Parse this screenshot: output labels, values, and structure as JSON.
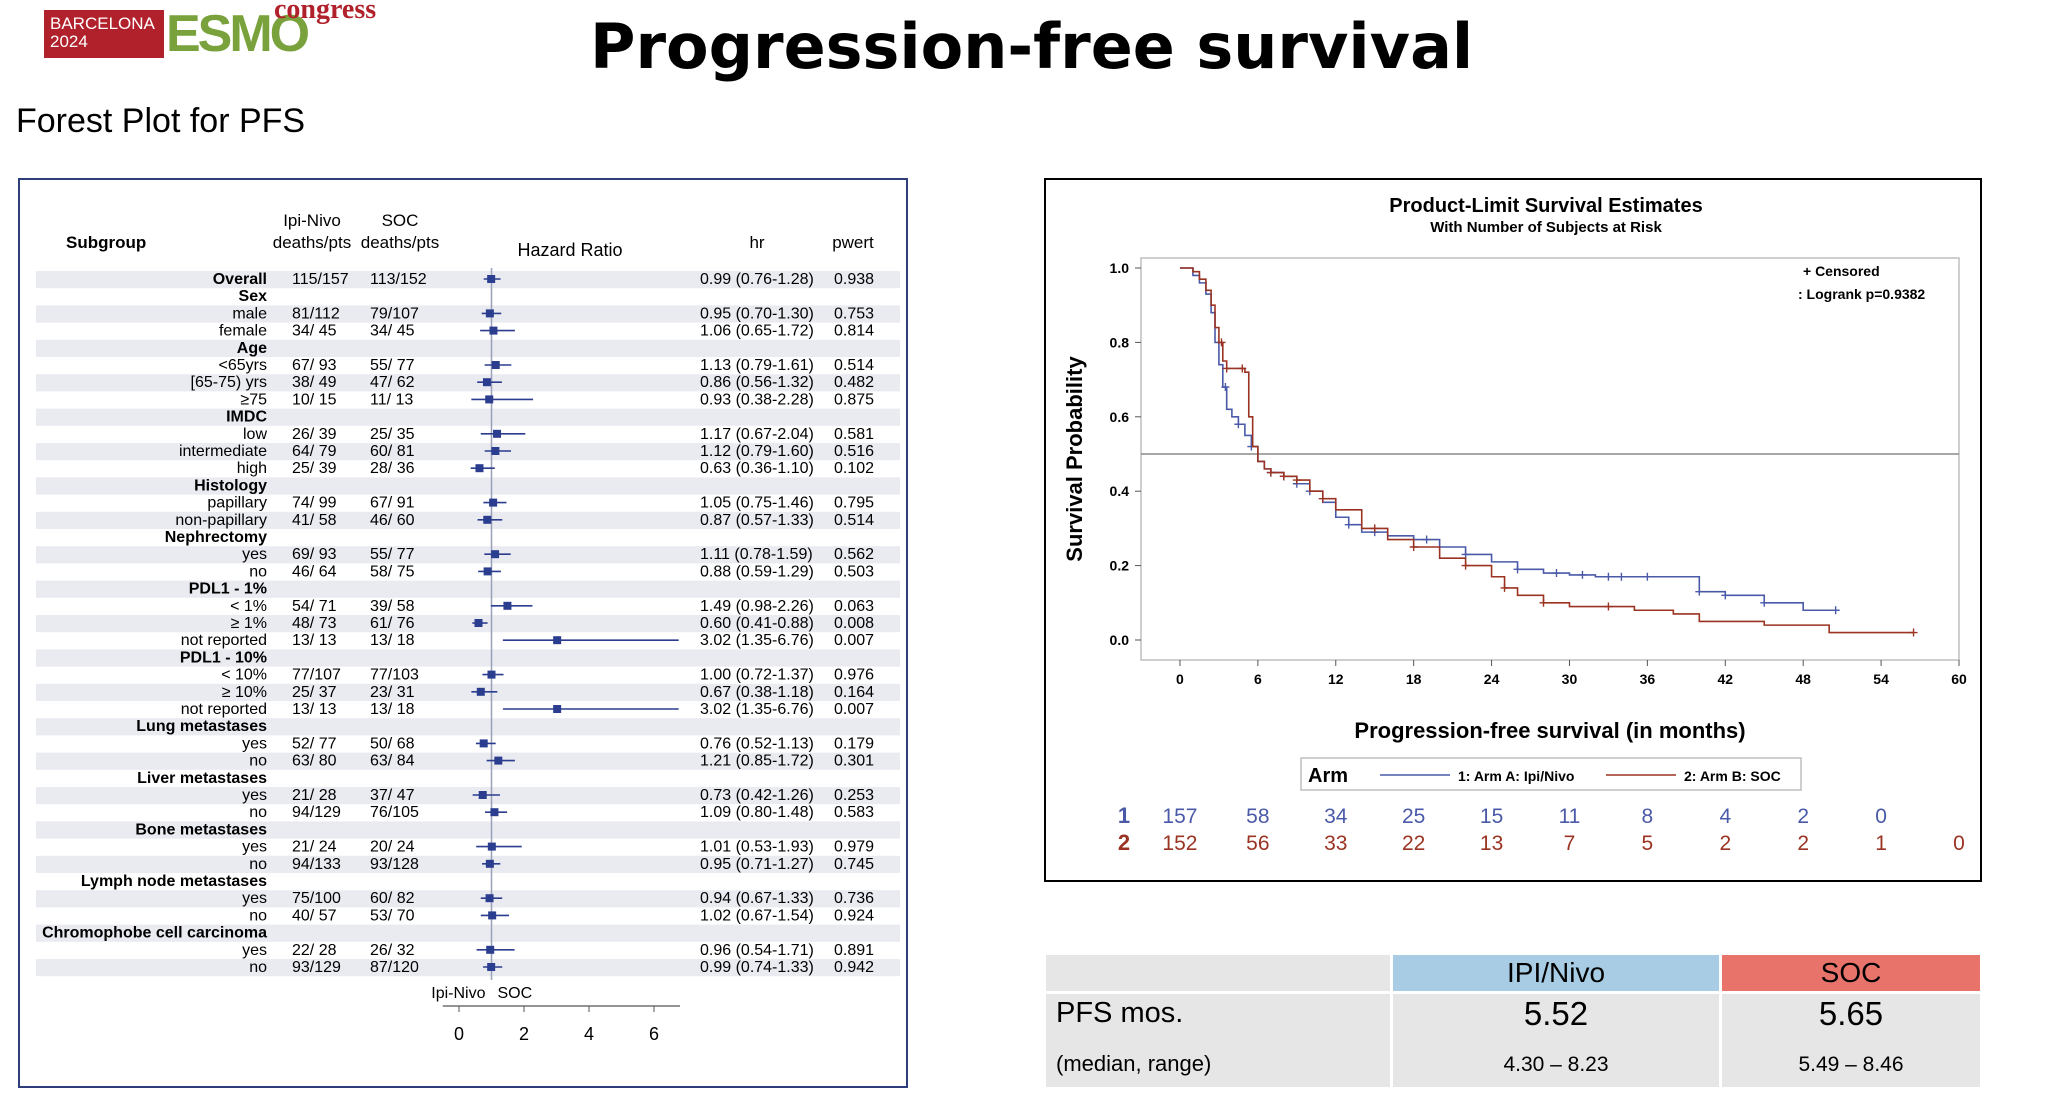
{
  "header": {
    "logo_city": "BARCELONA",
    "logo_year": "2024",
    "logo_brand": "ESMO",
    "logo_suffix": "congress",
    "title": "Progression-free survival",
    "subtitle": "Forest Plot for PFS"
  },
  "forest": {
    "col_subgroup": "Subgroup",
    "col_arm1_line1": "Ipi-Nivo",
    "col_arm1_line2": "deaths/pts",
    "col_arm2_line1": "SOC",
    "col_arm2_line2": "deaths/pts",
    "col_hr_plot": "Hazard Ratio",
    "col_hr": "hr",
    "col_p": "pwert",
    "favor_left": "Ipi-Nivo",
    "favor_right": "SOC",
    "ticks": [
      0,
      2,
      4,
      6
    ],
    "x_range": [
      -0.5,
      6.8
    ],
    "reference_line": 1
  },
  "chart_data": [
    {
      "type": "forest",
      "rows": [
        {
          "label": "Overall",
          "header": true,
          "a": "115/157",
          "b": "113/152",
          "hr": 0.99,
          "lo": 0.76,
          "hi": 1.28,
          "ci": "0.99 (0.76-1.28)",
          "p": "0.938"
        },
        {
          "label": "Sex",
          "header": true
        },
        {
          "label": "male",
          "a": "81/112",
          "b": "79/107",
          "hr": 0.95,
          "lo": 0.7,
          "hi": 1.3,
          "ci": "0.95 (0.70-1.30)",
          "p": "0.753"
        },
        {
          "label": "female",
          "a": "34/ 45",
          "b": "34/ 45",
          "hr": 1.06,
          "lo": 0.65,
          "hi": 1.72,
          "ci": "1.06 (0.65-1.72)",
          "p": "0.814"
        },
        {
          "label": "Age",
          "header": true
        },
        {
          "label": "<65yrs",
          "a": "67/ 93",
          "b": "55/ 77",
          "hr": 1.13,
          "lo": 0.79,
          "hi": 1.61,
          "ci": "1.13 (0.79-1.61)",
          "p": "0.514"
        },
        {
          "label": "[65-75) yrs",
          "a": "38/ 49",
          "b": "47/ 62",
          "hr": 0.86,
          "lo": 0.56,
          "hi": 1.32,
          "ci": "0.86 (0.56-1.32)",
          "p": "0.482"
        },
        {
          "label": "≥75",
          "a": "10/ 15",
          "b": "11/ 13",
          "hr": 0.93,
          "lo": 0.38,
          "hi": 2.28,
          "ci": "0.93 (0.38-2.28)",
          "p": "0.875"
        },
        {
          "label": "IMDC",
          "header": true
        },
        {
          "label": "low",
          "a": "26/ 39",
          "b": "25/ 35",
          "hr": 1.17,
          "lo": 0.67,
          "hi": 2.04,
          "ci": "1.17 (0.67-2.04)",
          "p": "0.581"
        },
        {
          "label": "intermediate",
          "a": "64/ 79",
          "b": "60/ 81",
          "hr": 1.12,
          "lo": 0.79,
          "hi": 1.6,
          "ci": "1.12 (0.79-1.60)",
          "p": "0.516"
        },
        {
          "label": "high",
          "a": "25/ 39",
          "b": "28/ 36",
          "hr": 0.63,
          "lo": 0.36,
          "hi": 1.1,
          "ci": "0.63 (0.36-1.10)",
          "p": "0.102"
        },
        {
          "label": "Histology",
          "header": true
        },
        {
          "label": "papillary",
          "a": "74/ 99",
          "b": "67/ 91",
          "hr": 1.05,
          "lo": 0.75,
          "hi": 1.46,
          "ci": "1.05 (0.75-1.46)",
          "p": "0.795"
        },
        {
          "label": "non-papillary",
          "a": "41/ 58",
          "b": "46/ 60",
          "hr": 0.87,
          "lo": 0.57,
          "hi": 1.33,
          "ci": "0.87 (0.57-1.33)",
          "p": "0.514"
        },
        {
          "label": "Nephrectomy",
          "header": true
        },
        {
          "label": "yes",
          "a": "69/ 93",
          "b": "55/ 77",
          "hr": 1.11,
          "lo": 0.78,
          "hi": 1.59,
          "ci": "1.11 (0.78-1.59)",
          "p": "0.562"
        },
        {
          "label": "no",
          "a": "46/ 64",
          "b": "58/ 75",
          "hr": 0.88,
          "lo": 0.59,
          "hi": 1.29,
          "ci": "0.88 (0.59-1.29)",
          "p": "0.503"
        },
        {
          "label": "PDL1 - 1%",
          "header": true
        },
        {
          "label": "< 1%",
          "a": "54/ 71",
          "b": "39/ 58",
          "hr": 1.49,
          "lo": 0.98,
          "hi": 2.26,
          "ci": "1.49 (0.98-2.26)",
          "p": "0.063"
        },
        {
          "label": "≥ 1%",
          "a": "48/ 73",
          "b": "61/ 76",
          "hr": 0.6,
          "lo": 0.41,
          "hi": 0.88,
          "ci": "0.60 (0.41-0.88)",
          "p": "0.008"
        },
        {
          "label": "not reported",
          "a": "13/ 13",
          "b": "13/ 18",
          "hr": 3.02,
          "lo": 1.35,
          "hi": 6.76,
          "ci": "3.02 (1.35-6.76)",
          "p": "0.007"
        },
        {
          "label": "PDL1 - 10%",
          "header": true
        },
        {
          "label": "< 10%",
          "a": "77/107",
          "b": "77/103",
          "hr": 1.0,
          "lo": 0.72,
          "hi": 1.37,
          "ci": "1.00 (0.72-1.37)",
          "p": "0.976"
        },
        {
          "label": "≥ 10%",
          "a": "25/ 37",
          "b": "23/ 31",
          "hr": 0.67,
          "lo": 0.38,
          "hi": 1.18,
          "ci": "0.67 (0.38-1.18)",
          "p": "0.164"
        },
        {
          "label": "not reported",
          "a": "13/ 13",
          "b": "13/ 18",
          "hr": 3.02,
          "lo": 1.35,
          "hi": 6.76,
          "ci": "3.02 (1.35-6.76)",
          "p": "0.007"
        },
        {
          "label": "Lung metastases",
          "header": true
        },
        {
          "label": "yes",
          "a": "52/ 77",
          "b": "50/ 68",
          "hr": 0.76,
          "lo": 0.52,
          "hi": 1.13,
          "ci": "0.76 (0.52-1.13)",
          "p": "0.179"
        },
        {
          "label": "no",
          "a": "63/ 80",
          "b": "63/ 84",
          "hr": 1.21,
          "lo": 0.85,
          "hi": 1.72,
          "ci": "1.21 (0.85-1.72)",
          "p": "0.301"
        },
        {
          "label": "Liver metastases",
          "header": true
        },
        {
          "label": "yes",
          "a": "21/ 28",
          "b": "37/ 47",
          "hr": 0.73,
          "lo": 0.42,
          "hi": 1.26,
          "ci": "0.73 (0.42-1.26)",
          "p": "0.253"
        },
        {
          "label": "no",
          "a": "94/129",
          "b": "76/105",
          "hr": 1.09,
          "lo": 0.8,
          "hi": 1.48,
          "ci": "1.09 (0.80-1.48)",
          "p": "0.583"
        },
        {
          "label": "Bone metastases",
          "header": true
        },
        {
          "label": "yes",
          "a": "21/ 24",
          "b": "20/ 24",
          "hr": 1.01,
          "lo": 0.53,
          "hi": 1.93,
          "ci": "1.01 (0.53-1.93)",
          "p": "0.979"
        },
        {
          "label": "no",
          "a": "94/133",
          "b": "93/128",
          "hr": 0.95,
          "lo": 0.71,
          "hi": 1.27,
          "ci": "0.95 (0.71-1.27)",
          "p": "0.745"
        },
        {
          "label": "Lymph node metastases",
          "header": true
        },
        {
          "label": "yes",
          "a": "75/100",
          "b": "60/ 82",
          "hr": 0.94,
          "lo": 0.67,
          "hi": 1.33,
          "ci": "0.94 (0.67-1.33)",
          "p": "0.736"
        },
        {
          "label": "no",
          "a": "40/ 57",
          "b": "53/ 70",
          "hr": 1.02,
          "lo": 0.67,
          "hi": 1.54,
          "ci": "1.02 (0.67-1.54)",
          "p": "0.924"
        },
        {
          "label": "Chromophobe cell carcinoma",
          "header": true
        },
        {
          "label": "yes",
          "a": "22/ 28",
          "b": "26/ 32",
          "hr": 0.96,
          "lo": 0.54,
          "hi": 1.71,
          "ci": "0.96 (0.54-1.71)",
          "p": "0.891"
        },
        {
          "label": "no",
          "a": "93/129",
          "b": "87/120",
          "hr": 0.99,
          "lo": 0.74,
          "hi": 1.33,
          "ci": "0.99 (0.74-1.33)",
          "p": "0.942"
        }
      ]
    },
    {
      "type": "line",
      "title": "Product-Limit Survival Estimates",
      "subtitle": "With Number of Subjects at Risk",
      "xlabel": "Progression-free survival (in months)",
      "ylabel": "Survival Probability",
      "xlim": [
        -3,
        60
      ],
      "ylim": [
        0,
        1
      ],
      "xticks": [
        0,
        6,
        12,
        18,
        24,
        30,
        36,
        42,
        48,
        54,
        60
      ],
      "yticks": [
        0.0,
        0.2,
        0.4,
        0.6,
        0.8,
        1.0
      ],
      "reference_y": 0.5,
      "legend_inset_1": "+ Censored",
      "legend_inset_2": ": Logrank p=0.9382",
      "legend_title": "Arm",
      "series": [
        {
          "name": "1: Arm A: Ipi/Nivo",
          "color": "#4a5aa8",
          "x": [
            0,
            1,
            1.5,
            2,
            2.4,
            2.7,
            3.0,
            3.3,
            3.6,
            4.0,
            4.5,
            5.0,
            5.5,
            6.0,
            6.5,
            7,
            8,
            9,
            10,
            11,
            12,
            13,
            14,
            16,
            18,
            20,
            22,
            24,
            26,
            28,
            30,
            32,
            34,
            36,
            40,
            42,
            45,
            48,
            50.5
          ],
          "y": [
            1.0,
            0.98,
            0.96,
            0.93,
            0.88,
            0.8,
            0.74,
            0.68,
            0.62,
            0.6,
            0.58,
            0.55,
            0.52,
            0.48,
            0.46,
            0.45,
            0.44,
            0.42,
            0.4,
            0.37,
            0.33,
            0.31,
            0.29,
            0.28,
            0.27,
            0.25,
            0.23,
            0.21,
            0.19,
            0.18,
            0.175,
            0.17,
            0.17,
            0.17,
            0.13,
            0.12,
            0.1,
            0.08,
            0.08
          ],
          "censor_x": [
            3.5,
            4.5,
            5.5,
            7,
            8,
            9,
            10,
            13,
            15,
            19,
            22,
            26,
            29,
            31,
            33,
            34,
            36,
            40,
            42,
            45,
            50.5
          ]
        },
        {
          "name": "2: Arm B: SOC",
          "color": "#9b3322",
          "x": [
            0,
            1,
            1.5,
            2,
            2.4,
            2.7,
            3.0,
            3.3,
            3.6,
            4.5,
            5.0,
            5.3,
            5.6,
            6.0,
            6.5,
            7,
            8,
            9,
            10,
            11,
            12,
            14,
            16,
            18,
            20,
            22,
            24,
            25,
            26,
            28,
            30,
            32,
            35,
            38,
            40,
            45,
            50,
            56.5
          ],
          "y": [
            1.0,
            0.99,
            0.97,
            0.94,
            0.9,
            0.84,
            0.8,
            0.75,
            0.73,
            0.73,
            0.72,
            0.6,
            0.52,
            0.48,
            0.46,
            0.45,
            0.44,
            0.43,
            0.4,
            0.38,
            0.35,
            0.3,
            0.27,
            0.25,
            0.22,
            0.2,
            0.17,
            0.14,
            0.12,
            0.1,
            0.09,
            0.09,
            0.08,
            0.07,
            0.05,
            0.04,
            0.02,
            0.02
          ],
          "censor_x": [
            3.2,
            3.6,
            4.8,
            7,
            8,
            9,
            11,
            15,
            18,
            22,
            25,
            28,
            33,
            56.5
          ]
        }
      ],
      "at_risk_times": [
        0,
        6,
        12,
        18,
        24,
        30,
        36,
        42,
        48,
        54,
        60
      ],
      "at_risk": [
        {
          "label": "1",
          "color": "#4a5aa8",
          "counts": [
            "157",
            "58",
            "34",
            "25",
            "15",
            "11",
            "8",
            "4",
            "2",
            "0",
            ""
          ]
        },
        {
          "label": "2",
          "color": "#9b3322",
          "counts": [
            "152",
            "56",
            "33",
            "22",
            "13",
            "7",
            "5",
            "2",
            "2",
            "1",
            "0"
          ]
        }
      ]
    }
  ],
  "summary_table": {
    "col1": "IPI/Nivo",
    "col2": "SOC",
    "col1_color": "#a7cce4",
    "col2_color": "#e8736b",
    "row1_label": "PFS mos.",
    "row2_label": "(median, range)",
    "v1": "5.52",
    "v2": "5.65",
    "r1": "4.30 – 8.23",
    "r2": "5.49 – 8.46"
  }
}
